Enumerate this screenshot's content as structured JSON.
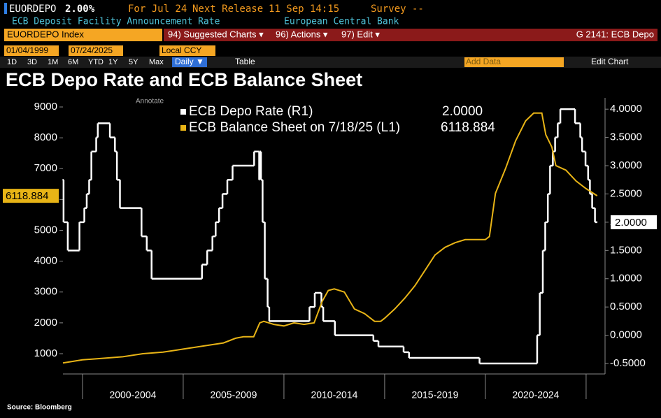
{
  "header": {
    "ticker": "EUORDEPO",
    "value": "2.00%",
    "for": "For Jul 24",
    "next_release": "Next Release",
    "release_date": "11 Sep 14:15",
    "survey": "Survey --",
    "description": "ECB Deposit Facility Announcement Rate",
    "source_org": "European Central Bank"
  },
  "toolbar": {
    "security": "EUORDEPO Index",
    "menus": [
      "94) Suggested Charts ▾",
      "96) Actions ▾",
      "97) Edit ▾"
    ],
    "chart_id": "G 2141: ECB Depo",
    "start_date": "01/04/1999",
    "end_date": "07/24/2025",
    "currency": "Local CCY",
    "ranges": [
      "1D",
      "3D",
      "1M",
      "6M",
      "YTD",
      "1Y",
      "5Y",
      "Max"
    ],
    "frequency": "Daily ▼",
    "table": "Table",
    "add_data": "Add Data",
    "edit_chart": "Edit Chart"
  },
  "chart_data": {
    "type": "line",
    "title": "ECB Depo Rate and ECB Balance Sheet",
    "annotate": "Annotate",
    "xlim": [
      1999.03,
      2025.94
    ],
    "x_separators": [
      2000,
      2005,
      2010,
      2015,
      2020,
      2025
    ],
    "xticks": [
      {
        "value": 2002.5,
        "label": "2000-2004"
      },
      {
        "value": 2007.5,
        "label": "2005-2009"
      },
      {
        "value": 2012.5,
        "label": "2010-2014"
      },
      {
        "value": 2017.5,
        "label": "2015-2019"
      },
      {
        "value": 2022.5,
        "label": "2020-2024"
      }
    ],
    "ylim": [
      343,
      9295
    ],
    "yticks": [
      1000,
      2000,
      3000,
      4000,
      5000,
      6000,
      7000,
      8000,
      9000
    ],
    "y2lim": [
      -0.685,
      4.2
    ],
    "y2ticks": [
      {
        "value": -0.5,
        "label": "-0.5000"
      },
      {
        "value": 0,
        "label": "0.0000"
      },
      {
        "value": 0.5,
        "label": "0.5000"
      },
      {
        "value": 1,
        "label": "1.0000"
      },
      {
        "value": 1.5,
        "label": "1.5000"
      },
      {
        "value": 2,
        "label": "2.0000"
      },
      {
        "value": 2.5,
        "label": "2.5000"
      },
      {
        "value": 3,
        "label": "3.0000"
      },
      {
        "value": 3.5,
        "label": "3.5000"
      },
      {
        "value": 4,
        "label": "4.0000"
      }
    ],
    "series": [
      {
        "name": "ECB Depo Rate (R1)",
        "legend_value": "2.0000",
        "last_label": "2.0000",
        "color": "#ffffff",
        "axis": "y2",
        "style": "step",
        "x": [
          1999.01,
          1999.06,
          1999.27,
          1999.85,
          2000.09,
          2000.21,
          2000.33,
          2000.44,
          2000.68,
          2000.76,
          2001.36,
          2001.61,
          2001.71,
          2001.86,
          2002.93,
          2003.19,
          2003.43,
          2005.93,
          2006.19,
          2006.45,
          2006.61,
          2006.78,
          2006.95,
          2007.19,
          2007.45,
          2008.52,
          2008.77,
          2008.79,
          2008.86,
          2008.94,
          2009.05,
          2009.19,
          2009.27,
          2011.27,
          2011.53,
          2011.86,
          2011.95,
          2012.53,
          2014.44,
          2014.69,
          2015.94,
          2016.21,
          2019.71,
          2022.57,
          2022.7,
          2022.85,
          2022.97,
          2023.1,
          2023.21,
          2023.35,
          2023.46,
          2023.59,
          2023.72,
          2024.45,
          2024.71,
          2024.8,
          2024.97,
          2025.1,
          2025.19,
          2025.3,
          2025.44,
          2025.56
        ],
        "values": [
          2.75,
          2,
          1.5,
          2,
          2.25,
          2.5,
          2.75,
          3.25,
          3.5,
          3.75,
          3.5,
          3.25,
          2.75,
          2.25,
          1.75,
          1.5,
          1,
          1.25,
          1.5,
          1.75,
          2,
          2.25,
          2.5,
          2.75,
          3,
          3.25,
          2.75,
          3.25,
          2.75,
          2,
          1,
          0.5,
          0.25,
          0.5,
          0.75,
          0.5,
          0.25,
          0,
          -0.1,
          -0.2,
          -0.3,
          -0.4,
          -0.5,
          0,
          0.75,
          1.5,
          2,
          2.5,
          3,
          3.25,
          3.5,
          3.75,
          4,
          3.75,
          3.5,
          3.25,
          3,
          2.75,
          2.5,
          2.25,
          2,
          2
        ]
      },
      {
        "name": "ECB Balance Sheet on 7/18/25 (L1)",
        "legend_value": "6118.884",
        "last_label": "6118.884",
        "color": "#e8b416",
        "axis": "y",
        "x": [
          1999.03,
          2000,
          2001,
          2002,
          2003,
          2004,
          2005,
          2006,
          2007,
          2007.6,
          2008,
          2008.5,
          2008.8,
          2009,
          2009.5,
          2010,
          2010.5,
          2011,
          2011.5,
          2011.9,
          2012.2,
          2012.5,
          2013,
          2013.5,
          2014,
          2014.5,
          2014.8,
          2015,
          2015.5,
          2016,
          2016.5,
          2017,
          2017.5,
          2018,
          2018.5,
          2019,
          2019.5,
          2020,
          2020.2,
          2020.5,
          2021,
          2021.5,
          2022,
          2022.4,
          2022.8,
          2023,
          2023.3,
          2023.5,
          2024,
          2024.5,
          2025,
          2025.55
        ],
        "values": [
          700,
          800,
          850,
          900,
          1000,
          1050,
          1150,
          1250,
          1350,
          1500,
          1550,
          1550,
          2000,
          2050,
          1950,
          1900,
          2000,
          1950,
          2000,
          2700,
          3050,
          3100,
          3000,
          2450,
          2300,
          2050,
          2050,
          2150,
          2450,
          2800,
          3200,
          3700,
          4200,
          4450,
          4600,
          4700,
          4700,
          4700,
          4800,
          6200,
          7000,
          7900,
          8550,
          8800,
          8800,
          8100,
          7700,
          7100,
          6950,
          6600,
          6350,
          6118.884
        ]
      }
    ]
  },
  "source": "Source: Bloomberg"
}
